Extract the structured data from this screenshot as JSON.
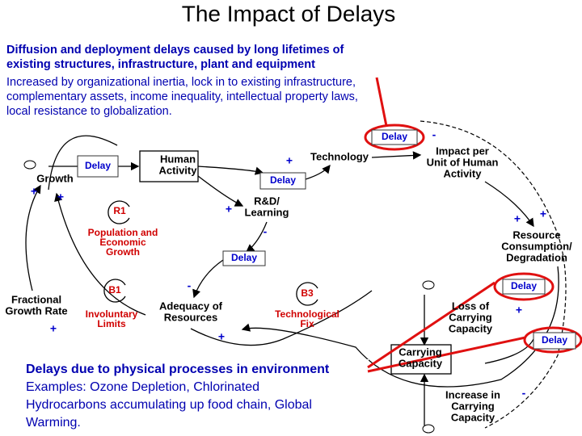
{
  "title": "The Impact of Delays",
  "intro": {
    "heading": [
      "Diffusion and deployment delays caused by long lifetimes of",
      "existing structures, infrastructure, plant and equipment"
    ],
    "body": [
      "Increased by organizational inertia, lock in to existing infrastructure,",
      "complementary assets, income inequality, intellectual property laws,",
      "local resistance to globalization."
    ]
  },
  "callout": [
    "Delays due to physical processes in environment",
    "Examples:  Ozone Depletion, Chlorinated",
    "Hydrocarbons accumulating up food chain, Global",
    "Warming."
  ],
  "nodes": {
    "growth": [
      "Growth"
    ],
    "human_activity": [
      "Human",
      "Activity"
    ],
    "technology": [
      "Technology"
    ],
    "impact": [
      "Impact per",
      "Unit of Human",
      "Activity"
    ],
    "rd": [
      "R&D/",
      "Learning"
    ],
    "resource": [
      "Resource",
      "Consumption/",
      "Degradation"
    ],
    "fractional": [
      "Fractional",
      "Growth  Rate"
    ],
    "adequacy": [
      "Adequacy  of",
      "Resources"
    ],
    "loss": [
      "Loss of",
      "Carrying",
      "Capacity"
    ],
    "carrying": [
      "Carrying",
      "Capacity"
    ],
    "increase": [
      "Increase in",
      "Carrying",
      "Capacity"
    ]
  },
  "loops": {
    "r1": {
      "id": "R1",
      "name": [
        "Population and",
        "Economic",
        "Growth"
      ]
    },
    "b1": {
      "id": "B1",
      "name": [
        "Involuntary",
        "Limits"
      ]
    },
    "b3": {
      "id": "B3",
      "name": [
        "Technological",
        "Fix"
      ]
    }
  },
  "delays": [
    "Delay",
    "Delay",
    "Delay",
    "Delay",
    "Delay",
    "Delay"
  ],
  "polarities": [
    "+",
    "+",
    "+",
    "+",
    "-",
    "-",
    "+",
    "+",
    "-",
    "+",
    "+",
    "+",
    "-"
  ]
}
